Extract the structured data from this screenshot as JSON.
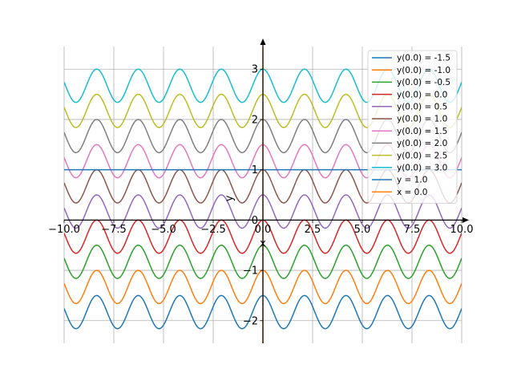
{
  "chart_data": {
    "type": "line",
    "xlabel": "x",
    "ylabel": "y",
    "xlim": [
      -10.0,
      10.0
    ],
    "ylim": [
      -2.45,
      3.45
    ],
    "grid": true,
    "legend_position": "top-right",
    "x_ticks": [
      "−10.0",
      "−7.5",
      "−5.0",
      "−2.5",
      "0.0",
      "2.5",
      "5.0",
      "7.5",
      "10.0"
    ],
    "x_tick_values": [
      -10,
      -7.5,
      -5,
      -2.5,
      0,
      2.5,
      5,
      7.5,
      10
    ],
    "y_ticks": [
      "−2",
      "−1",
      "0",
      "1",
      "2",
      "3"
    ],
    "y_tick_values": [
      -2,
      -1,
      0,
      1,
      2,
      3
    ],
    "curve_model": {
      "amplitude": 0.33,
      "period": 2.09
    },
    "series": [
      {
        "name": "y(0.0) = -1.5",
        "kind": "oscillation",
        "initial": -1.5,
        "color": "#1f77b4"
      },
      {
        "name": "y(0.0) = -1.0",
        "kind": "oscillation",
        "initial": -1.0,
        "color": "#ff7f0e"
      },
      {
        "name": "y(0.0) = -0.5",
        "kind": "oscillation",
        "initial": -0.5,
        "color": "#2ca02c"
      },
      {
        "name": "y(0.0) = 0.0",
        "kind": "oscillation",
        "initial": 0.0,
        "color": "#d62728"
      },
      {
        "name": "y(0.0) = 0.5",
        "kind": "oscillation",
        "initial": 0.5,
        "color": "#9467bd"
      },
      {
        "name": "y(0.0) = 1.0",
        "kind": "oscillation",
        "initial": 1.0,
        "color": "#8c564b"
      },
      {
        "name": "y(0.0) = 1.5",
        "kind": "oscillation",
        "initial": 1.5,
        "color": "#e377c2"
      },
      {
        "name": "y(0.0) = 2.0",
        "kind": "oscillation",
        "initial": 2.0,
        "color": "#7f7f7f"
      },
      {
        "name": "y(0.0) = 2.5",
        "kind": "oscillation",
        "initial": 2.5,
        "color": "#bcbd22"
      },
      {
        "name": "y(0.0) = 3.0",
        "kind": "oscillation",
        "initial": 3.0,
        "color": "#17becf"
      },
      {
        "name": "y = 1.0",
        "kind": "hline",
        "value": 1.0,
        "color": "#1f77b4"
      },
      {
        "name": "x = 0.0",
        "kind": "vline",
        "value": 0.0,
        "color": "#ff7f0e"
      }
    ]
  }
}
